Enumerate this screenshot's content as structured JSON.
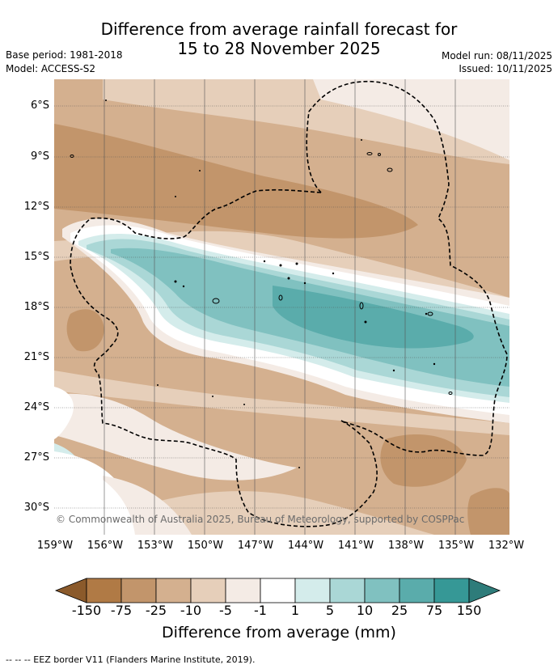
{
  "title": {
    "line1": "Difference from average rainfall forecast for",
    "line2": "15 to 28 November 2025"
  },
  "meta": {
    "base_period": "Base period: 1981-2018",
    "model": "Model: ACCESS-S2",
    "model_run": "Model run: 08/11/2025",
    "issued": "Issued: 10/11/2025"
  },
  "map": {
    "lat_ticks": [
      "6°S",
      "9°S",
      "12°S",
      "15°S",
      "18°S",
      "21°S",
      "24°S",
      "27°S",
      "30°S"
    ],
    "lon_ticks": [
      "159°W",
      "156°W",
      "153°W",
      "150°W",
      "147°W",
      "144°W",
      "141°W",
      "138°W",
      "135°W",
      "132°W"
    ],
    "copyright": "© Commonwealth of Australia 2025, Bureau of Meteorology, supported by COSPPac"
  },
  "colorbar": {
    "labels": [
      "-150",
      "-75",
      "-25",
      "-10",
      "-5",
      "-1",
      "1",
      "5",
      "10",
      "25",
      "75",
      "150"
    ],
    "colors": [
      "#8b5a2b",
      "#b07a45",
      "#c2956b",
      "#d4b08f",
      "#e6cfba",
      "#f4ebe5",
      "#ffffff",
      "#d4eceb",
      "#aad7d6",
      "#80c1c0",
      "#5aacab",
      "#369896",
      "#2e7c7a"
    ],
    "title": "Difference from average (mm)"
  },
  "footnote": "--  --  -- EEZ border V11 (Flanders Marine Institute, 2019)."
}
